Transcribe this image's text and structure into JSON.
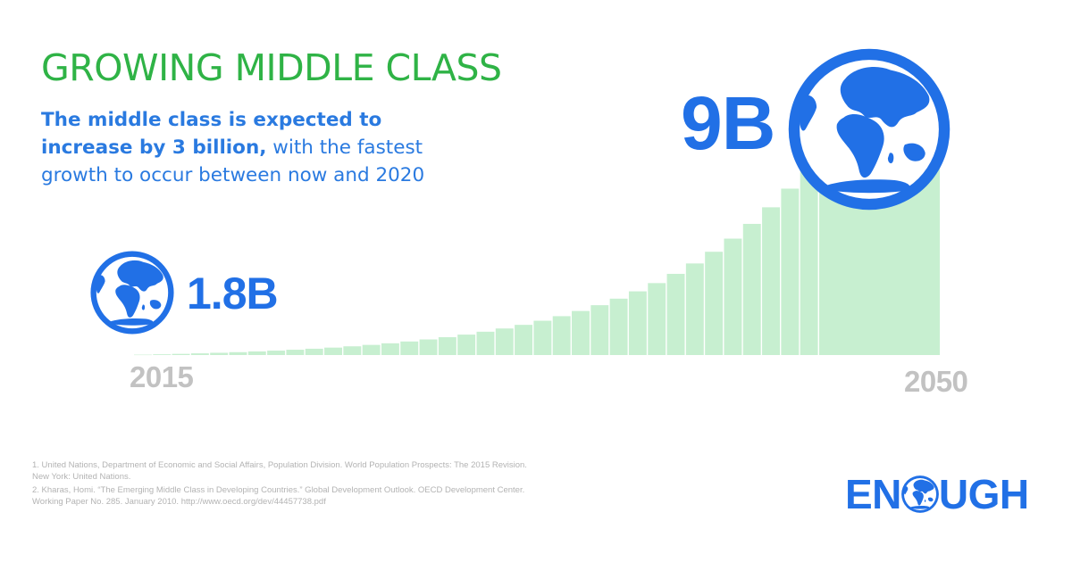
{
  "colors": {
    "title_green": "#2fb346",
    "blue": "#2170e6",
    "subtitle_blue": "#2a7ae0",
    "area_fill": "#c7efd0",
    "bar_separator": "#ffffff",
    "year_gray": "#c2c2c2",
    "footnote_gray": "#b3b3b3"
  },
  "header": {
    "title": "GROWING MIDDLE CLASS",
    "subtitle_bold": "The middle class is expected to increase by 3 billion,",
    "subtitle_rest": "with the fastest growth to occur between now and 2020"
  },
  "chart_data": {
    "type": "area",
    "x": [
      "2015",
      "2050"
    ],
    "start_label": "1.8B",
    "end_label": "9B",
    "x_tick_labels": [
      "2015",
      "2050"
    ],
    "curve": "exponential",
    "grid": false,
    "icons": [
      "globe-icon",
      "globe-icon"
    ]
  },
  "footnotes": [
    "1. United Nations, Department of Economic and Social Affairs, Population Division. World Population Prospects: The 2015 Revision. New York: United Nations.",
    "2. Kharas, Homi. “The Emerging Middle Class in Developing Countries.” Global Development Outlook. OECD Development Center. Working Paper No. 285. January 2010. http://www.oecd.org/dev/44457738.pdf"
  ],
  "logo": {
    "part1": "EN",
    "part2": "UGH",
    "icon": "globe-icon"
  }
}
